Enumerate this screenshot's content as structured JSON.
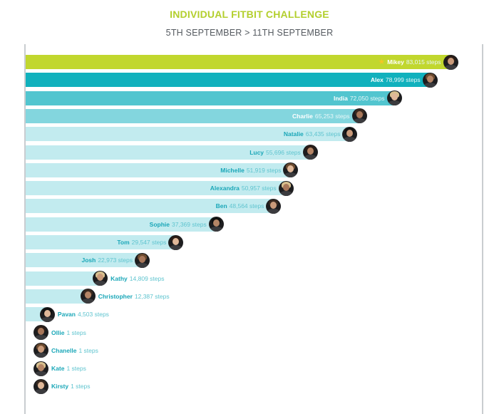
{
  "colors": {
    "title": "#b3cf2d",
    "leader_bar": "#c1d72e",
    "rank2_bar": "#11b1bd",
    "rank3_bar": "#52c5cf",
    "rank4_bar": "#83d6de",
    "rest_bar": "#c2ebef",
    "name_text": "#1aa7b8",
    "steps_text_dark_bar": "#e8f7f8",
    "steps_text_light_bar": "#5fc4cf",
    "light_label": "#ffffff"
  },
  "chart_data": {
    "type": "bar",
    "orientation": "horizontal",
    "title": "INDIVIDUAL FITBIT CHALLENGE",
    "subtitle": "5TH SEPTEMBER > 11TH SEPTEMBER",
    "unit": "steps",
    "categories": [
      "Mikey",
      "Alex",
      "India",
      "Charlie",
      "Natalie",
      "Lucy",
      "Michelle",
      "Alexandra",
      "Ben",
      "Sophie",
      "Tom",
      "Josh",
      "Kathy",
      "Christopher",
      "Pavan",
      "Ollie",
      "Chanelle",
      "Kate",
      "Kirsty"
    ],
    "values": [
      83015,
      78999,
      72050,
      65253,
      63435,
      55696,
      51919,
      50957,
      48564,
      37369,
      29547,
      22973,
      14809,
      12387,
      4503,
      1,
      1,
      1,
      1
    ],
    "value_labels": [
      "83,015 steps",
      "78,999 steps",
      "72,050 steps",
      "65,253 steps",
      "63,435 steps",
      "55,696 steps",
      "51,919 steps",
      "50,957 steps",
      "48,564 steps",
      "37,369 steps",
      "29,547 steps",
      "22,973 steps",
      "14,809 steps",
      "12,387 steps",
      "4,503 steps",
      "1 steps",
      "1 steps",
      "1 steps",
      "1 steps"
    ],
    "leader_icon": "star-icon",
    "avatar_icon": "person-avatar-icon",
    "grid": false,
    "legend": "none"
  }
}
